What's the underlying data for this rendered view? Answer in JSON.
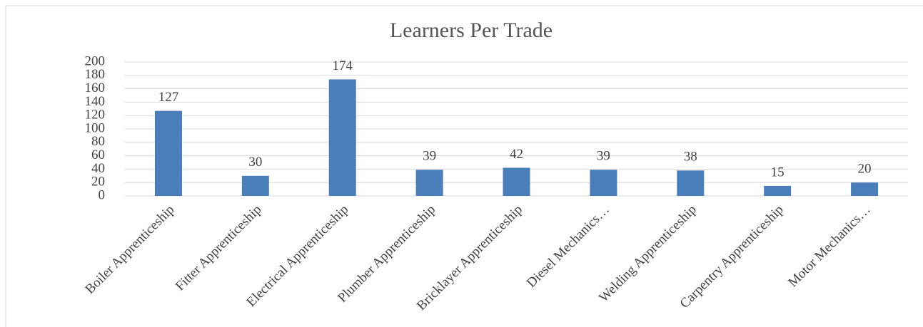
{
  "chart_data": {
    "type": "bar",
    "title": "Learners Per Trade",
    "categories": [
      "Boiler Apprenticeship",
      "Fitter Apprenticeship",
      "Electrical Apprenticeship",
      "Plumber Apprenticeship",
      "Bricklayer Apprenticeship",
      "Diesel Mechanics…",
      "Welding Apprenticeship",
      "Carpentry Apprenticeship",
      "Motor Mechanics…"
    ],
    "values": [
      127,
      30,
      174,
      39,
      42,
      39,
      38,
      15,
      20
    ],
    "color": "#4a7ebb",
    "ylim": [
      0,
      200
    ],
    "yticks": [
      0,
      20,
      40,
      60,
      80,
      100,
      120,
      140,
      160,
      180,
      200
    ],
    "grid": true
  }
}
